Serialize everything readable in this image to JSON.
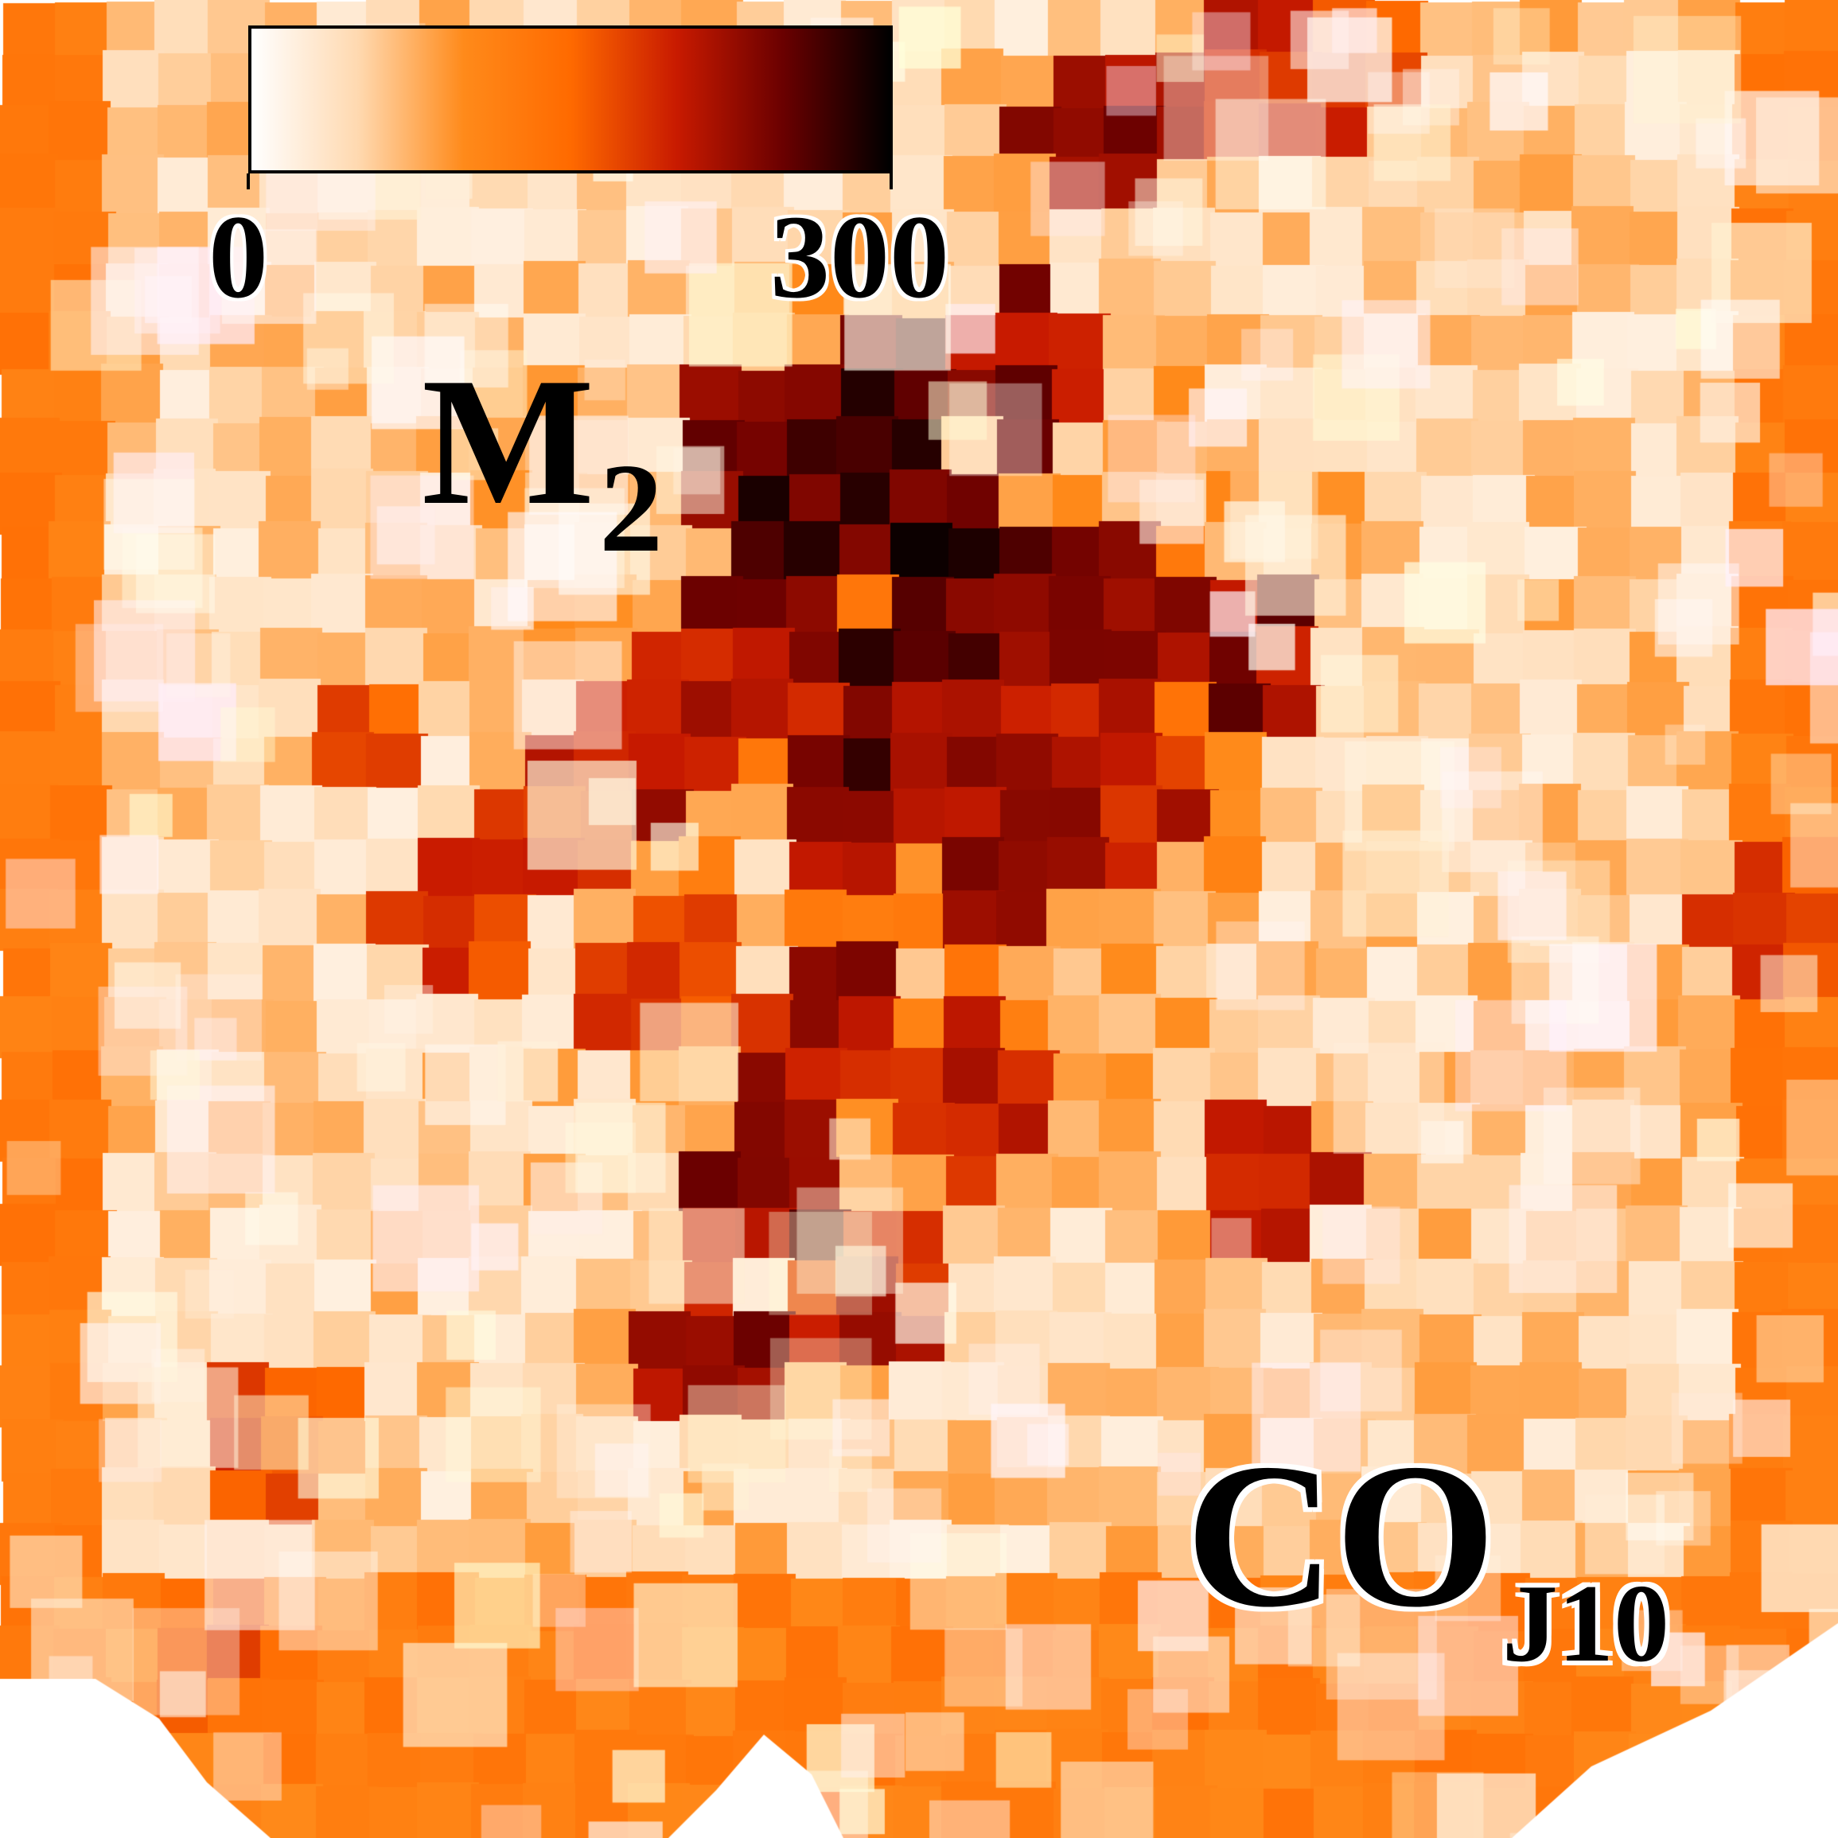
{
  "chart_data": {
    "type": "heatmap",
    "title": "",
    "colorbar": {
      "min_label": "0",
      "max_label": "300",
      "range": [
        0,
        300
      ],
      "colormap": [
        "#ffffff",
        "#ffd9b0",
        "#ff8a1a",
        "#ff6a00",
        "#c81a00",
        "#6a0000",
        "#000000"
      ]
    },
    "map_label": {
      "main": "M",
      "sub": "2"
    },
    "species_label": {
      "main": "CO",
      "sub": "J10"
    },
    "blocks": [
      {
        "x": 0.41,
        "y": 0.24,
        "v": 280
      },
      {
        "x": 0.48,
        "y": 0.22,
        "v": 295
      },
      {
        "x": 0.55,
        "y": 0.2,
        "v": 260
      },
      {
        "x": 0.45,
        "y": 0.28,
        "v": 290
      },
      {
        "x": 0.52,
        "y": 0.3,
        "v": 300
      },
      {
        "x": 0.6,
        "y": 0.33,
        "v": 270
      },
      {
        "x": 0.42,
        "y": 0.35,
        "v": 250
      },
      {
        "x": 0.5,
        "y": 0.38,
        "v": 280
      },
      {
        "x": 0.57,
        "y": 0.4,
        "v": 240
      },
      {
        "x": 0.35,
        "y": 0.4,
        "v": 230
      },
      {
        "x": 0.3,
        "y": 0.45,
        "v": 220
      },
      {
        "x": 0.46,
        "y": 0.45,
        "v": 260
      },
      {
        "x": 0.55,
        "y": 0.47,
        "v": 250
      },
      {
        "x": 0.62,
        "y": 0.43,
        "v": 230
      },
      {
        "x": 0.68,
        "y": 0.35,
        "v": 260
      },
      {
        "x": 0.37,
        "y": 0.54,
        "v": 200
      },
      {
        "x": 0.45,
        "y": 0.56,
        "v": 240
      },
      {
        "x": 0.52,
        "y": 0.6,
        "v": 220
      },
      {
        "x": 0.42,
        "y": 0.65,
        "v": 260
      },
      {
        "x": 0.47,
        "y": 0.7,
        "v": 230
      },
      {
        "x": 0.39,
        "y": 0.74,
        "v": 250
      },
      {
        "x": 0.69,
        "y": 0.64,
        "v": 240
      },
      {
        "x": 0.2,
        "y": 0.4,
        "v": 180
      },
      {
        "x": 0.25,
        "y": 0.5,
        "v": 200
      },
      {
        "x": 0.6,
        "y": 0.08,
        "v": 250
      },
      {
        "x": 0.68,
        "y": 0.05,
        "v": 230
      },
      {
        "x": 0.73,
        "y": 0.03,
        "v": 200
      },
      {
        "x": 0.15,
        "y": 0.78,
        "v": 200
      },
      {
        "x": 0.12,
        "y": 0.9,
        "v": 180
      },
      {
        "x": 0.97,
        "y": 0.49,
        "v": 200
      }
    ]
  }
}
